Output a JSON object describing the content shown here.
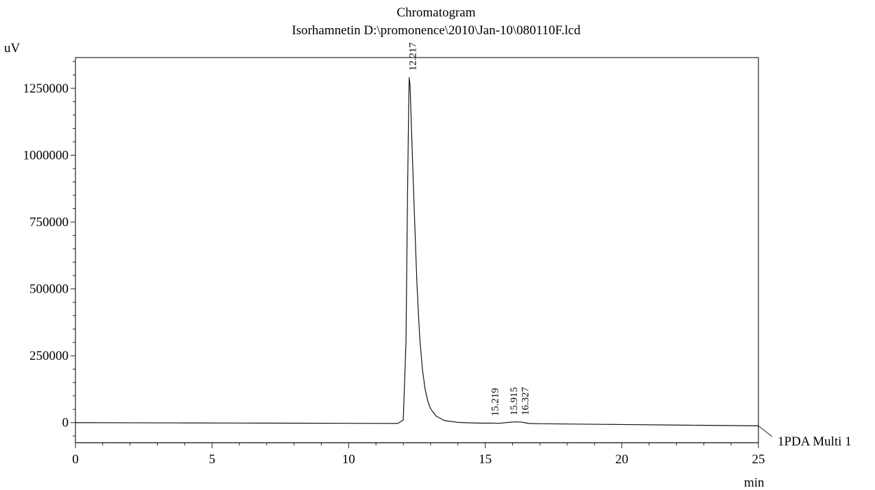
{
  "chart_data": {
    "type": "line",
    "title": "Chromatogram",
    "subtitle": "Isorhamnetin D:\\promonence\\2010\\Jan-10\\080110F.lcd",
    "xlabel": "min",
    "ylabel": "uV",
    "xlim": [
      0,
      25
    ],
    "ylim": [
      -75000,
      1365000
    ],
    "x_ticks": [
      0,
      5,
      10,
      15,
      20,
      25
    ],
    "y_ticks": [
      0,
      250000,
      500000,
      750000,
      1000000,
      1250000
    ],
    "x_tick_labels": [
      "0",
      "5",
      "10",
      "15",
      "20",
      "25"
    ],
    "y_tick_labels": [
      "0",
      "250000",
      "500000",
      "750000",
      "1000000",
      "1250000"
    ],
    "grid": false,
    "series": [
      {
        "name": "1PDA Multi 1",
        "color": "#111111",
        "x": [
          0,
          2,
          4,
          6,
          8,
          10,
          11,
          11.8,
          12.0,
          12.1,
          12.15,
          12.2,
          12.217,
          12.25,
          12.3,
          12.4,
          12.5,
          12.6,
          12.7,
          12.8,
          12.9,
          13.0,
          13.2,
          13.5,
          14.0,
          14.5,
          15.0,
          15.219,
          15.5,
          15.915,
          16.1,
          16.327,
          16.6,
          17.0,
          18,
          20,
          22,
          24,
          25
        ],
        "y": [
          0,
          -500,
          -1000,
          -1500,
          -2000,
          -2500,
          -2800,
          -3000,
          10000,
          300000,
          800000,
          1200000,
          1290000,
          1260000,
          1100000,
          800000,
          520000,
          320000,
          200000,
          125000,
          80000,
          52000,
          25000,
          8000,
          1000,
          -1000,
          -2000,
          -1500,
          -2500,
          1500,
          3000,
          2000,
          -3000,
          -4000,
          -5000,
          -7000,
          -9000,
          -11000,
          -12000
        ]
      }
    ],
    "baseline": {
      "y": -75000
    },
    "peak_labels": [
      {
        "x": 12.217,
        "y": 1290000,
        "label": "12.217"
      },
      {
        "x": 15.219,
        "y": -1500,
        "label": "15.219"
      },
      {
        "x": 15.915,
        "y": 1500,
        "label": "15.915"
      },
      {
        "x": 16.327,
        "y": 2000,
        "label": "16.327"
      }
    ],
    "legend": {
      "position": "right-end-of-trace",
      "label": "1PDA Multi 1"
    }
  }
}
